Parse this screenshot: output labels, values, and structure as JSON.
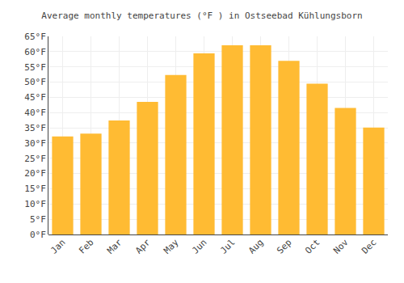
{
  "chart_data": {
    "type": "bar",
    "title": "Average monthly temperatures (°F ) in Ostseebad Kühlungsborn",
    "categories": [
      "Jan",
      "Feb",
      "Mar",
      "Apr",
      "May",
      "Jun",
      "Jul",
      "Aug",
      "Sep",
      "Oct",
      "Nov",
      "Dec"
    ],
    "values": [
      32.2,
      33.1,
      37.4,
      43.5,
      52.3,
      59.4,
      62.1,
      62.1,
      57.0,
      49.5,
      41.5,
      35.1
    ],
    "color": "#FFBB33",
    "ylim": [
      0,
      65
    ],
    "yticks": [
      {
        "value": 0,
        "label": "0°F"
      },
      {
        "value": 5,
        "label": "5°F"
      },
      {
        "value": 10,
        "label": "10°F"
      },
      {
        "value": 15,
        "label": "15°F"
      },
      {
        "value": 20,
        "label": "20°F"
      },
      {
        "value": 25,
        "label": "25°F"
      },
      {
        "value": 30,
        "label": "30°F"
      },
      {
        "value": 35,
        "label": "35°F"
      },
      {
        "value": 40,
        "label": "40°F"
      },
      {
        "value": 45,
        "label": "45°F"
      },
      {
        "value": 50,
        "label": "50°F"
      },
      {
        "value": 55,
        "label": "55°F"
      },
      {
        "value": 60,
        "label": "60°F"
      },
      {
        "value": 65,
        "label": "65°F"
      }
    ],
    "grid": true
  }
}
